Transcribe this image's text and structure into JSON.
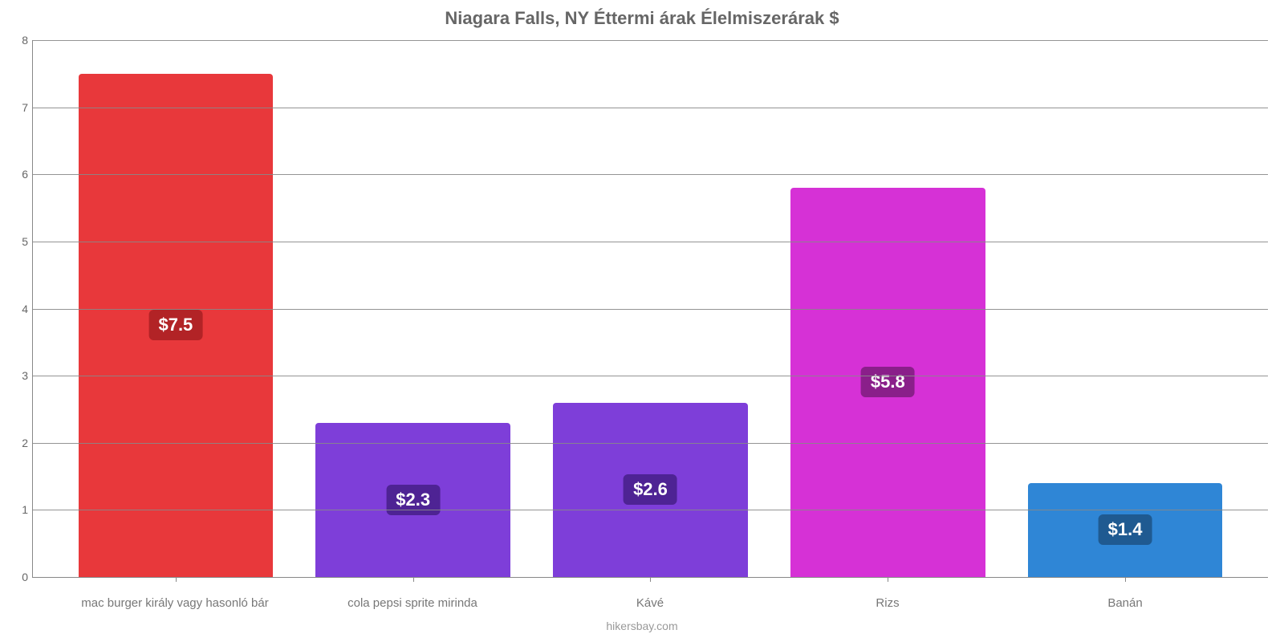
{
  "chart": {
    "type": "bar",
    "title": "Niagara Falls, NY Éttermi árak Élelmiszerárak $",
    "title_color": "#666666",
    "title_fontsize": 22,
    "background_color": "#ffffff",
    "axis_color": "#888888",
    "grid_color": "#888888",
    "ylim": [
      0,
      8
    ],
    "ytick_step": 1,
    "yticks": [
      0,
      1,
      2,
      3,
      4,
      5,
      6,
      7,
      8
    ],
    "ytick_fontsize": 14,
    "ytick_color": "#666666",
    "xlabel_fontsize": 15,
    "xlabel_color": "#777777",
    "bar_width_pct": 82,
    "bar_border_radius": 4,
    "value_label_fontsize": 22,
    "value_label_text_color": "#ffffff",
    "value_badge_radius": 6,
    "categories": [
      "mac burger király vagy hasonló bár",
      "cola pepsi sprite mirinda",
      "Kávé",
      "Rizs",
      "Banán"
    ],
    "values": [
      7.5,
      2.3,
      2.6,
      5.8,
      1.4
    ],
    "value_labels": [
      "$7.5",
      "$2.3",
      "$2.6",
      "$5.8",
      "$1.4"
    ],
    "bar_colors": [
      "#e8383b",
      "#7e3ed9",
      "#7e3ed9",
      "#d631d6",
      "#2f86d6"
    ],
    "badge_colors": [
      "#b22326",
      "#4e2394",
      "#4e2394",
      "#8a1f8a",
      "#1f5a91"
    ],
    "source": "hikersbay.com",
    "source_color": "#999999",
    "source_fontsize": 14
  }
}
